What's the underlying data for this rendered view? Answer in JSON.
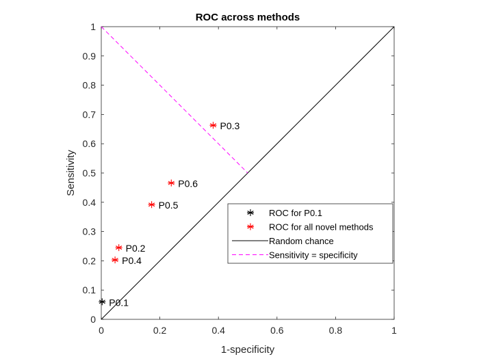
{
  "chart_data": {
    "type": "scatter",
    "title": "ROC across methods",
    "xlabel": "1-specificity",
    "ylabel": "Sensitivity",
    "xlim": [
      0,
      1
    ],
    "ylim": [
      0,
      1
    ],
    "xticks": [
      "0",
      "0.2",
      "0.4",
      "0.6",
      "0.8",
      "1"
    ],
    "xtick_values": [
      0,
      0.2,
      0.4,
      0.6,
      0.8,
      1
    ],
    "yticks": [
      "0",
      "0.1",
      "0.2",
      "0.3",
      "0.4",
      "0.5",
      "0.6",
      "0.7",
      "0.8",
      "0.9",
      "1"
    ],
    "ytick_values": [
      0,
      0.1,
      0.2,
      0.3,
      0.4,
      0.5,
      0.6,
      0.7,
      0.8,
      0.9,
      1
    ],
    "grid": false,
    "legend_position": "lower-right",
    "baseline_point": {
      "label": "P0.1",
      "x": 0.003,
      "y": 0.06,
      "color": "#000000"
    },
    "novel_points": [
      {
        "label": "P0.2",
        "x": 0.06,
        "y": 0.245
      },
      {
        "label": "P0.3",
        "x": 0.382,
        "y": 0.663
      },
      {
        "label": "P0.4",
        "x": 0.047,
        "y": 0.203
      },
      {
        "label": "P0.5",
        "x": 0.172,
        "y": 0.392
      },
      {
        "label": "P0.6",
        "x": 0.239,
        "y": 0.466
      }
    ],
    "novel_color": "#ff0000",
    "random_chance": {
      "x": [
        0,
        1
      ],
      "y": [
        0,
        1
      ],
      "color": "#000000"
    },
    "sens_eq_spec": {
      "x": [
        0,
        0.5
      ],
      "y": [
        1,
        0.5
      ],
      "color": "#ff00ff"
    },
    "legend": [
      {
        "label": "ROC for P0.1",
        "marker": "star",
        "color": "#000000"
      },
      {
        "label": "ROC for all novel methods",
        "marker": "star",
        "color": "#ff0000"
      },
      {
        "label": "Random chance",
        "marker": "line",
        "color": "#000000"
      },
      {
        "label": "Sensitivity = specificity",
        "marker": "dashed",
        "color": "#ff00ff"
      }
    ]
  }
}
